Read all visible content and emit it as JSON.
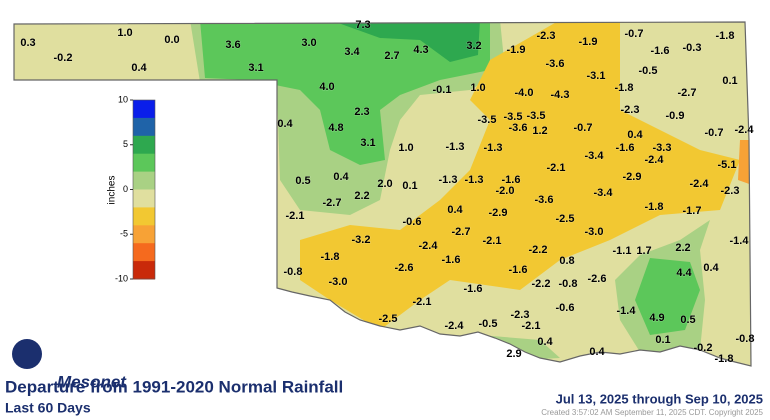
{
  "title": "Departure from 1991-2020 Normal Rainfall",
  "subtitle": "Last 60 Days",
  "date_range": "Jul 13, 2025 through Sep 10, 2025",
  "credit": "Created 3:57:02 AM September 11, 2025 CDT. Copyright 2025",
  "logo": "Mesonet",
  "legend": {
    "label": "inches",
    "range": [
      -10,
      10
    ],
    "ticks": [
      10,
      5,
      0,
      -5,
      -10
    ],
    "colors": [
      "#0a1eea",
      "#1f63a8",
      "#2ea84f",
      "#5cc75a",
      "#a9d184",
      "#e0df9f",
      "#f2c832",
      "#f7a236",
      "#f56a1e",
      "#c92a0a"
    ]
  },
  "stations": [
    "0.3",
    "-0.2",
    "1.0",
    "0.4",
    "0.0",
    "3.6",
    "3.1",
    "3.0",
    "7.3",
    "3.4",
    "2.7",
    "4.3",
    "3.2",
    "-1.9",
    "-2.3",
    "-1.9",
    "-0.7",
    "-1.6",
    "-0.3",
    "-1.8",
    "-3.6",
    "-3.1",
    "-0.5",
    "0.1",
    "4.0",
    "-0.1",
    "1.0",
    "-4.0",
    "-4.3",
    "-1.8",
    "-2.7",
    "2.3",
    "-2.3",
    "0.4",
    "4.8",
    "-3.5",
    "-3.5",
    "-3.5",
    "-3.6",
    "1.2",
    "-0.7",
    "-0.9",
    "-0.7",
    "-2.4",
    "3.1",
    "1.0",
    "-1.3",
    "-1.3",
    "0.4",
    "-1.6",
    "-3.3",
    "-3.4",
    "-2.4",
    "-5.1",
    "-2.1",
    "-2.9",
    "0.5",
    "0.4",
    "2.0",
    "0.1",
    "-1.3",
    "-1.3",
    "-1.6",
    "-2.0",
    "-2.4",
    "-2.3",
    "-2.7",
    "2.2",
    "-3.4",
    "-3.6",
    "-1.8",
    "-1.7",
    "-2.1",
    "-0.6",
    "0.4",
    "-2.9",
    "-2.5",
    "-2.7",
    "-3.0",
    "-3.2",
    "-2.4",
    "-2.1",
    "-2.2",
    "-1.1",
    "1.7",
    "2.2",
    "-1.4",
    "-1.8",
    "-1.6",
    "0.8",
    "-0.8",
    "-3.0",
    "-2.6",
    "-1.6",
    "-2.6",
    "4.4",
    "0.4",
    "-1.6",
    "-2.2",
    "-0.8",
    "-2.1",
    "-0.6",
    "-1.4",
    "4.9",
    "0.5",
    "-2.3",
    "-2.5",
    "-2.4",
    "-0.5",
    "-2.1",
    "0.4",
    "0.1",
    "-0.2",
    "-0.8",
    "2.9",
    "0.4",
    "-1.8"
  ]
}
